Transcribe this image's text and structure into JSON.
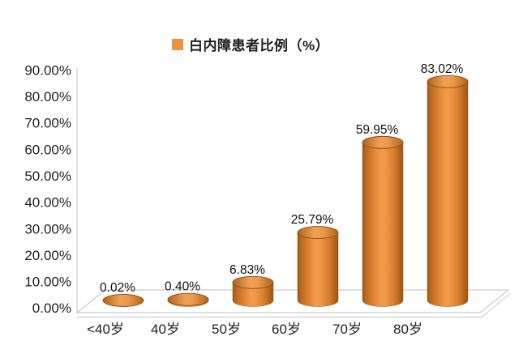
{
  "chart_data": {
    "type": "bar",
    "shape": "3d-cylinder",
    "name": "白内障患者比例（%）",
    "title": "",
    "xlabel": "",
    "ylabel": "",
    "categories": [
      "<40岁",
      "40岁",
      "50岁",
      "60岁",
      "70岁",
      "80岁"
    ],
    "values": [
      0.02,
      0.4,
      6.83,
      25.79,
      59.95,
      83.02
    ],
    "data_labels": [
      "0.02%",
      "0.40%",
      "6.83%",
      "25.79%",
      "59.95%",
      "83.02%"
    ],
    "y_ticks": [
      "90.00%",
      "80.00%",
      "70.00%",
      "60.00%",
      "50.00%",
      "40.00%",
      "30.00%",
      "20.00%",
      "10.00%",
      "0.00%"
    ],
    "ylim": [
      0,
      90
    ],
    "y_tick_step": 10,
    "grid": false,
    "legend_position": "top-center",
    "color": "#ED9243",
    "axis_color": "#BFBFBF",
    "background": "#FFFFFF"
  }
}
